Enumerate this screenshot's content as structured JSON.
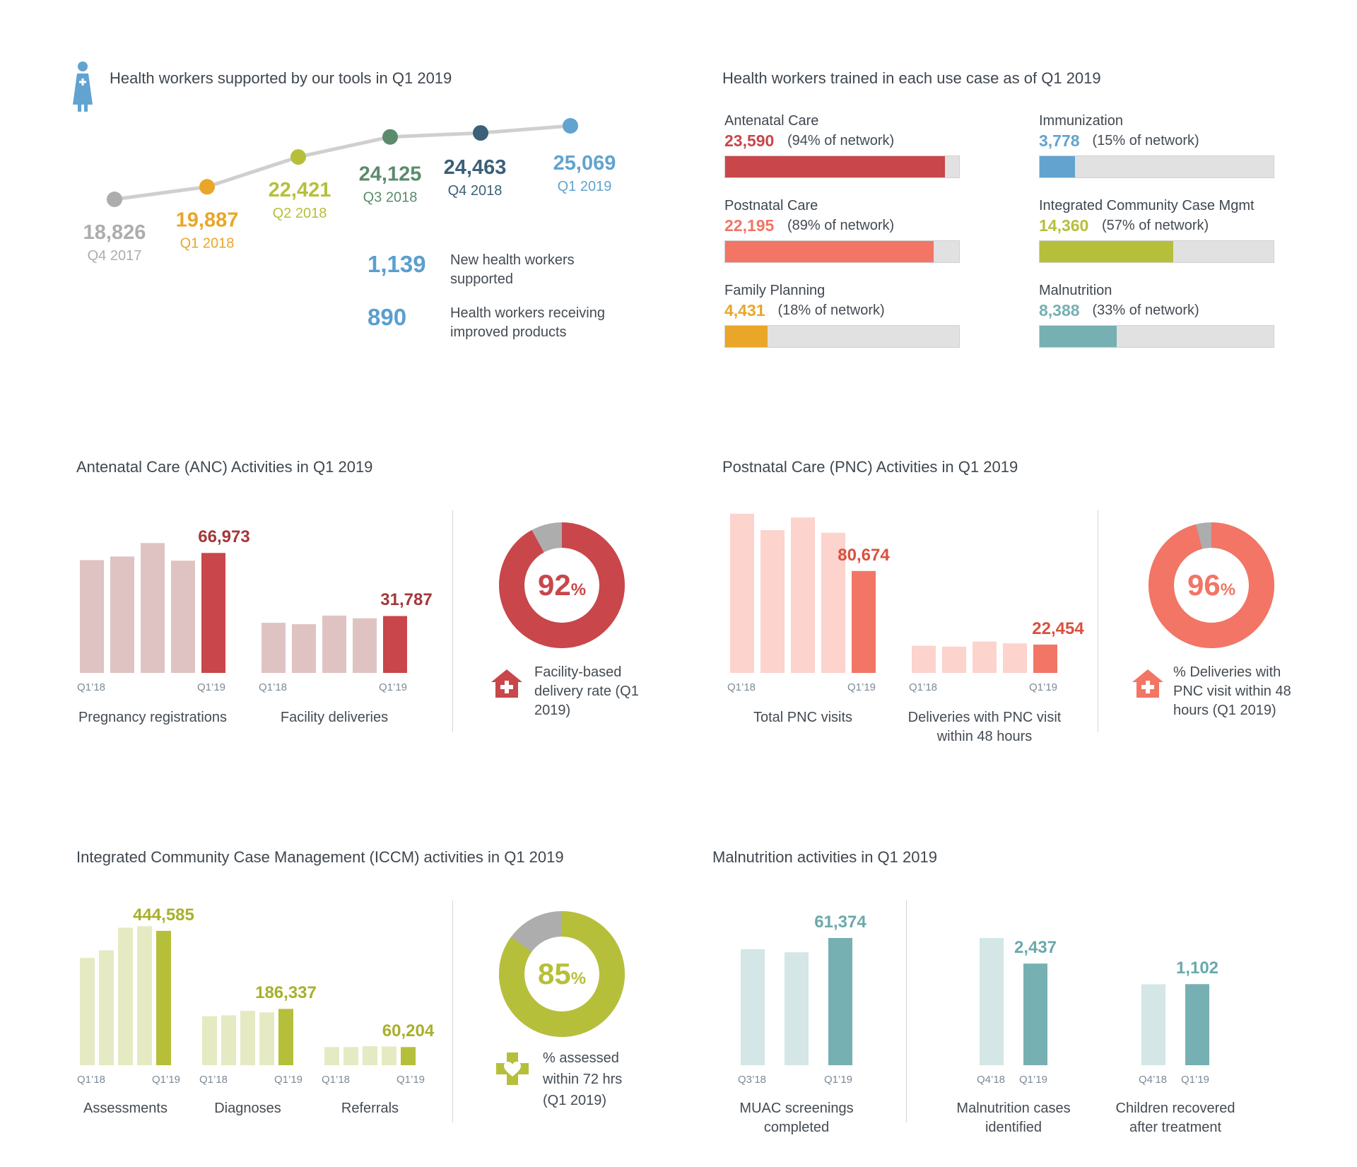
{
  "colors": {
    "anc": "#c9464a",
    "anc_light": "#dfc3c2",
    "pnc": "#f27565",
    "pnc_light": "#fcd3cd",
    "iccm": "#b6bf3a",
    "iccm_light": "#e6eac3",
    "mal": "#76b0b2",
    "mal_light": "#d4e6e6",
    "fp": "#e9a628",
    "imm": "#62a3cf",
    "grey": "#adadad",
    "track": "#e1e1e1"
  },
  "hw": {
    "title": "Health workers supported by our tools in Q1 2019",
    "icon": "health-worker-icon",
    "points": [
      {
        "value": 18826,
        "label": "18,826",
        "quarter": "Q4 2017",
        "color": "#adadad"
      },
      {
        "value": 19887,
        "label": "19,887",
        "quarter": "Q1 2018",
        "color": "#e9a628"
      },
      {
        "value": 22421,
        "label": "22,421",
        "quarter": "Q2 2018",
        "color": "#b6bf3a"
      },
      {
        "value": 24125,
        "label": "24,125",
        "quarter": "Q3 2018",
        "color": "#5b8b6c"
      },
      {
        "value": 24463,
        "label": "24,463",
        "quarter": "Q4 2018",
        "color": "#3b6078"
      },
      {
        "value": 25069,
        "label": "25,069",
        "quarter": "Q1 2019",
        "color": "#62a3cf"
      }
    ],
    "stats": [
      {
        "num": "1,139",
        "text": "New health workers supported"
      },
      {
        "num": "890",
        "text": "Health workers receiving improved products"
      }
    ]
  },
  "use_cases": {
    "title": "Health workers trained in each use case as of Q1 2019",
    "items": [
      {
        "name": "Antenatal Care",
        "value": "23,590",
        "pct_text": "(94% of network)",
        "pct": 94,
        "color": "#c9464a"
      },
      {
        "name": "Immunization",
        "value": "3,778",
        "pct_text": "(15% of network)",
        "pct": 15,
        "color": "#62a3cf"
      },
      {
        "name": "Postnatal Care",
        "value": "22,195",
        "pct_text": "(89% of network)",
        "pct": 89,
        "color": "#f27565"
      },
      {
        "name": "Integrated Community Case Mgmt",
        "value": "14,360",
        "pct_text": "(57% of network)",
        "pct": 57,
        "color": "#b6bf3a"
      },
      {
        "name": "Family Planning",
        "value": "4,431",
        "pct_text": "(18% of network)",
        "pct": 18,
        "color": "#e9a628"
      },
      {
        "name": "Malnutrition",
        "value": "8,388",
        "pct_text": "(33% of network)",
        "pct": 33,
        "color": "#76b0b2"
      }
    ]
  },
  "anc": {
    "title": "Antenatal Care (ANC) Activities in Q1 2019",
    "groups": [
      {
        "name": "Pregnancy registrations",
        "values": [
          63000,
          65000,
          72500,
          62700,
          66973
        ],
        "value_label": "66,973",
        "ticks": [
          "Q1’18",
          "Q1’19"
        ]
      },
      {
        "name": "Facility deliveries",
        "values": [
          28000,
          27200,
          32000,
          30500,
          31787
        ],
        "value_label": "31,787",
        "ticks": [
          "Q1’18",
          "Q1’19"
        ]
      }
    ],
    "donut": {
      "pct": 92,
      "pct_label": "92",
      "pct_sign": "%",
      "note": "Facility-based delivery rate (Q1 2019)",
      "icon": "facility-house-icon"
    }
  },
  "pnc": {
    "title": "Postnatal Care (PNC) Activities in Q1 2019",
    "groups": [
      {
        "name": "Total PNC visits",
        "values": [
          126000,
          113000,
          123000,
          111000,
          80674
        ],
        "value_label": "80,674",
        "ticks": [
          "Q1’18",
          "Q1’19"
        ]
      },
      {
        "name": "Deliveries with PNC visit within 48 hours",
        "values": [
          21500,
          20800,
          24800,
          23400,
          22454
        ],
        "value_label": "22,454",
        "ticks": [
          "Q1’18",
          "Q1’19"
        ]
      }
    ],
    "donut": {
      "pct": 96,
      "pct_label": "96",
      "pct_sign": "%",
      "note": "% Deliveries with PNC visit within 48 hours (Q1 2019)",
      "icon": "facility-house-icon"
    }
  },
  "iccm": {
    "title": "Integrated Community Case Management (ICCM) activities in Q1 2019",
    "groups": [
      {
        "name": "Assessments",
        "values": [
          355000,
          380000,
          455000,
          460000,
          444585
        ],
        "value_label": "444,585",
        "ticks": [
          "Q1’18",
          "Q1’19"
        ]
      },
      {
        "name": "Diagnoses",
        "values": [
          162000,
          165000,
          180000,
          175000,
          186337
        ],
        "value_label": "186,337",
        "ticks": [
          "Q1’18",
          "Q1’19"
        ]
      },
      {
        "name": "Referrals",
        "values": [
          60000,
          60000,
          63000,
          62000,
          60204
        ],
        "value_label": "60,204",
        "ticks": [
          "Q1’18",
          "Q1’19"
        ]
      }
    ],
    "donut": {
      "pct": 85,
      "pct_label": "85",
      "pct_sign": "%",
      "note": "% assessed within 72 hrs (Q1 2019)",
      "icon": "heart-plus-icon"
    }
  },
  "mal": {
    "title": "Malnutrition activities in Q1 2019",
    "groups": [
      {
        "name": "MUAC screenings completed",
        "values": [
          56000,
          54500,
          61374
        ],
        "value_label": "61,374",
        "ticks": [
          "Q3’18",
          "Q1’19"
        ]
      },
      {
        "name": "Malnutrition cases identified",
        "values": [
          3050,
          2437
        ],
        "value_label": "2,437",
        "ticks": [
          "Q4’18",
          "Q1’19"
        ]
      },
      {
        "name": "Children recovered after treatment",
        "values": [
          1100,
          1102
        ],
        "value_label": "1,102",
        "ticks": [
          "Q4’18",
          "Q1’19"
        ]
      }
    ]
  },
  "chart_data": [
    {
      "type": "line",
      "title": "Health workers supported by our tools in Q1 2019",
      "x": [
        "Q4 2017",
        "Q1 2018",
        "Q2 2018",
        "Q3 2018",
        "Q4 2018",
        "Q1 2019"
      ],
      "values": [
        18826,
        19887,
        22421,
        24125,
        24463,
        25069
      ]
    },
    {
      "type": "bar",
      "title": "Health workers trained in each use case as of Q1 2019",
      "categories": [
        "Antenatal Care",
        "Immunization",
        "Postnatal Care",
        "Integrated Community Case Mgmt",
        "Family Planning",
        "Malnutrition"
      ],
      "values": [
        23590,
        3778,
        22195,
        14360,
        4431,
        8388
      ]
    },
    {
      "type": "bar",
      "title": "Antenatal Care (ANC) Activities in Q1 2019",
      "series": [
        {
          "name": "Pregnancy registrations",
          "values": [
            63000,
            65000,
            72500,
            62700,
            66973
          ]
        },
        {
          "name": "Facility deliveries",
          "values": [
            28000,
            27200,
            32000,
            30500,
            31787
          ]
        }
      ]
    },
    {
      "type": "pie",
      "values": [
        92,
        8
      ]
    },
    {
      "type": "bar",
      "title": "Postnatal Care (PNC) Activities in Q1 2019",
      "series": [
        {
          "name": "Total PNC visits",
          "values": [
            126000,
            113000,
            123000,
            111000,
            80674
          ]
        },
        {
          "name": "Deliveries with PNC visit within 48 hours",
          "values": [
            21500,
            20800,
            24800,
            23400,
            22454
          ]
        }
      ]
    },
    {
      "type": "pie",
      "values": [
        96,
        4
      ]
    },
    {
      "type": "bar",
      "title": "Integrated Community Case Management (ICCM) activities in Q1 2019",
      "series": [
        {
          "name": "Assessments",
          "values": [
            355000,
            380000,
            455000,
            460000,
            444585
          ]
        },
        {
          "name": "Diagnoses",
          "values": [
            162000,
            165000,
            180000,
            175000,
            186337
          ]
        },
        {
          "name": "Referrals",
          "values": [
            60000,
            60000,
            63000,
            62000,
            60204
          ]
        }
      ]
    },
    {
      "type": "pie",
      "values": [
        85,
        15
      ]
    },
    {
      "type": "bar",
      "title": "Malnutrition activities in Q1 2019",
      "series": [
        {
          "name": "MUAC screenings completed",
          "values": [
            56000,
            54500,
            61374
          ]
        },
        {
          "name": "Malnutrition cases identified",
          "values": [
            3050,
            2437
          ]
        },
        {
          "name": "Children recovered after treatment",
          "values": [
            1100,
            1102
          ]
        }
      ]
    }
  ]
}
